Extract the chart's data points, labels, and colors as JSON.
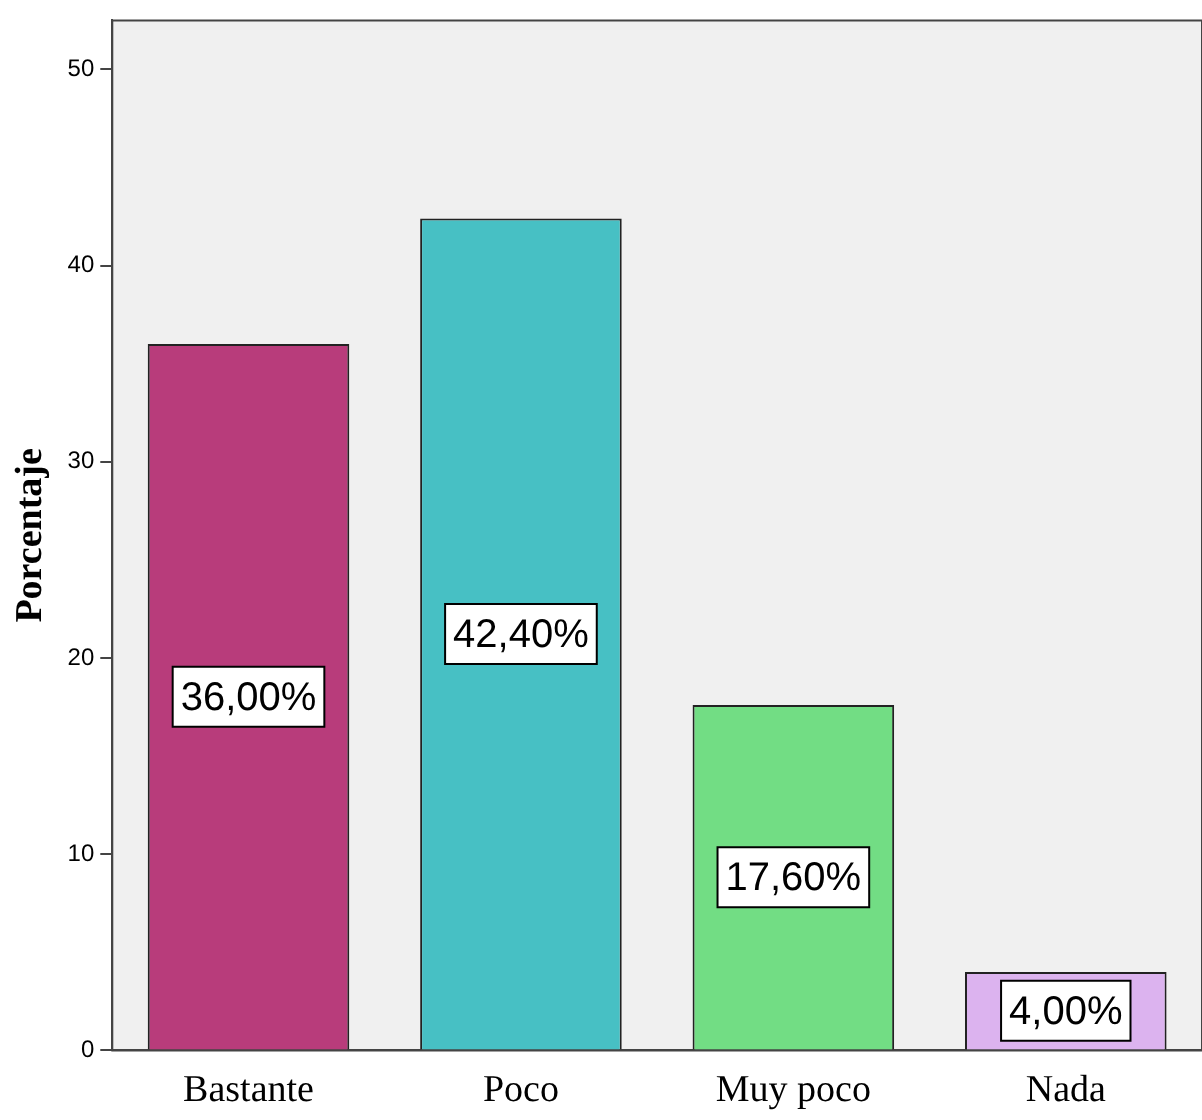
{
  "chart_data": {
    "type": "bar",
    "ylabel": "Porcentaje",
    "categories": [
      "Bastante",
      "Poco",
      "Muy poco",
      "Nada"
    ],
    "values": [
      36,
      42.4,
      17.6,
      4
    ],
    "colors": [
      "#b83c7b",
      "#47c0c4",
      "#72dd84",
      "#dcb3ef"
    ],
    "value_labels": [
      "36,00%",
      "42,40%",
      "17,60%",
      "4,00%"
    ],
    "ylim": [
      0,
      52.5
    ],
    "yticks": [
      0,
      10,
      20,
      30,
      40,
      50
    ],
    "grid": false,
    "legend": false
  }
}
